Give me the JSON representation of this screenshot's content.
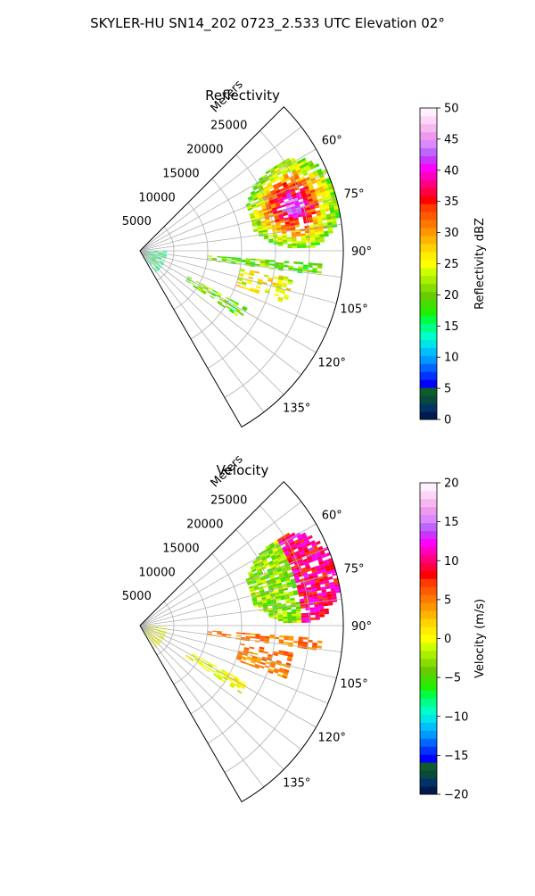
{
  "figure_title": "SKYLER-HU  SN14_202  0723_2.533 UTC Elevation 02°",
  "chart_data": [
    {
      "type": "heatmap",
      "projection": "polar-sector",
      "title": "Reflectivity",
      "range_label": "Meters",
      "range_ticks": [
        5000,
        10000,
        15000,
        20000,
        25000
      ],
      "range_tick_labels": [
        "5000",
        "10000",
        "15000",
        "20000",
        "25000"
      ],
      "range_lim": [
        0,
        30000
      ],
      "azimuth_lim_deg": [
        45,
        150
      ],
      "azimuth_ticks_deg": [
        60,
        75,
        90,
        105,
        120,
        135
      ],
      "azimuth_tick_labels": [
        "60°",
        "75°",
        "90°",
        "105°",
        "120°",
        "135°"
      ],
      "grid": true,
      "colorbar": {
        "label": "Reflectivity dBZ",
        "lim": [
          0,
          50
        ],
        "ticks": [
          0,
          5,
          10,
          15,
          20,
          25,
          30,
          35,
          40,
          45,
          50
        ],
        "tick_labels": [
          "0",
          "5",
          "10",
          "15",
          "20",
          "25",
          "30",
          "35",
          "40",
          "45",
          "50"
        ],
        "colors": [
          "#001a4d",
          "#003366",
          "#0a4a3a",
          "#0f5b2e",
          "#0000ff",
          "#0033ff",
          "#0066ff",
          "#0099ff",
          "#00bfff",
          "#00e5e5",
          "#00ffc8",
          "#00ff88",
          "#00ff44",
          "#22ee00",
          "#44dd00",
          "#66cc00",
          "#88dd00",
          "#aaee00",
          "#ccff00",
          "#ffff00",
          "#ffee00",
          "#ffd200",
          "#ffb400",
          "#ff9600",
          "#ff7800",
          "#ff5a00",
          "#ff3c00",
          "#ff0000",
          "#ff0040",
          "#ff0080",
          "#ff00c0",
          "#ff00ff",
          "#cc33ff",
          "#bb66ff",
          "#dd88ff",
          "#ee99ee",
          "#f5b8f0",
          "#ffd6fa",
          "#fff0ff"
        ]
      },
      "echo_regions": [
        {
          "name": "main-storm",
          "azimuth_deg": [
            58,
            89
          ],
          "range_m": [
            17000,
            30000
          ],
          "dbz_core": 45,
          "dbz_edge": 20
        },
        {
          "name": "radial-line-95",
          "azimuth_deg": [
            94,
            98
          ],
          "range_m": [
            10000,
            27000
          ],
          "dbz": 20
        },
        {
          "name": "radial-line-105",
          "azimuth_deg": [
            100,
            110
          ],
          "range_m": [
            15000,
            23000
          ],
          "dbz": 25
        },
        {
          "name": "near-clutter",
          "azimuth_deg": [
            90,
            145
          ],
          "range_m": [
            0,
            4000
          ],
          "dbz": 15
        },
        {
          "name": "arc-125",
          "azimuth_deg": [
            118,
            124
          ],
          "range_m": [
            8000,
            18000
          ],
          "dbz": 20
        }
      ]
    },
    {
      "type": "heatmap",
      "projection": "polar-sector",
      "title": "Velocity",
      "range_label": "Meters",
      "range_ticks": [
        5000,
        10000,
        15000,
        20000,
        25000
      ],
      "range_tick_labels": [
        "5000",
        "10000",
        "15000",
        "20000",
        "25000"
      ],
      "range_lim": [
        0,
        30000
      ],
      "azimuth_lim_deg": [
        45,
        150
      ],
      "azimuth_ticks_deg": [
        60,
        75,
        90,
        105,
        120,
        135
      ],
      "azimuth_tick_labels": [
        "60°",
        "75°",
        "90°",
        "105°",
        "120°",
        "135°"
      ],
      "grid": true,
      "colorbar": {
        "label": "Velocity (m/s)",
        "lim": [
          -20,
          20
        ],
        "ticks": [
          -20,
          -15,
          -10,
          -5,
          0,
          5,
          10,
          15,
          20
        ],
        "tick_labels": [
          "−20",
          "−15",
          "−10",
          "−5",
          "0",
          "5",
          "10",
          "15",
          "20"
        ],
        "colors": [
          "#001a4d",
          "#003366",
          "#0a4a3a",
          "#0f5b2e",
          "#0000ff",
          "#0033ff",
          "#0066ff",
          "#0099ff",
          "#00bfff",
          "#00e5e5",
          "#00ffc8",
          "#00ff88",
          "#00ff44",
          "#22ee00",
          "#44dd00",
          "#66cc00",
          "#88dd00",
          "#aaee00",
          "#ccff00",
          "#ffff00",
          "#ffee00",
          "#ffd200",
          "#ffb400",
          "#ff9600",
          "#ff7800",
          "#ff5a00",
          "#ff3c00",
          "#ff0000",
          "#ff0040",
          "#ff0080",
          "#ff00c0",
          "#ff00ff",
          "#cc33ff",
          "#bb66ff",
          "#dd88ff",
          "#ee99ee",
          "#f5b8f0",
          "#ffd6fa",
          "#fff0ff"
        ]
      },
      "echo_regions": [
        {
          "name": "main-storm",
          "azimuth_deg": [
            58,
            89
          ],
          "range_m": [
            17000,
            30000
          ],
          "velocity_core": 10,
          "velocity_edge": -3
        },
        {
          "name": "radial-line-95",
          "azimuth_deg": [
            94,
            98
          ],
          "range_m": [
            10000,
            27000
          ],
          "velocity": 5
        },
        {
          "name": "radial-line-105",
          "azimuth_deg": [
            100,
            110
          ],
          "range_m": [
            15000,
            23000
          ],
          "velocity": 5
        },
        {
          "name": "near-clutter",
          "azimuth_deg": [
            90,
            145
          ],
          "range_m": [
            0,
            4000
          ],
          "velocity": 0
        },
        {
          "name": "arc-125",
          "azimuth_deg": [
            118,
            124
          ],
          "range_m": [
            8000,
            18000
          ],
          "velocity": 0
        }
      ]
    }
  ]
}
